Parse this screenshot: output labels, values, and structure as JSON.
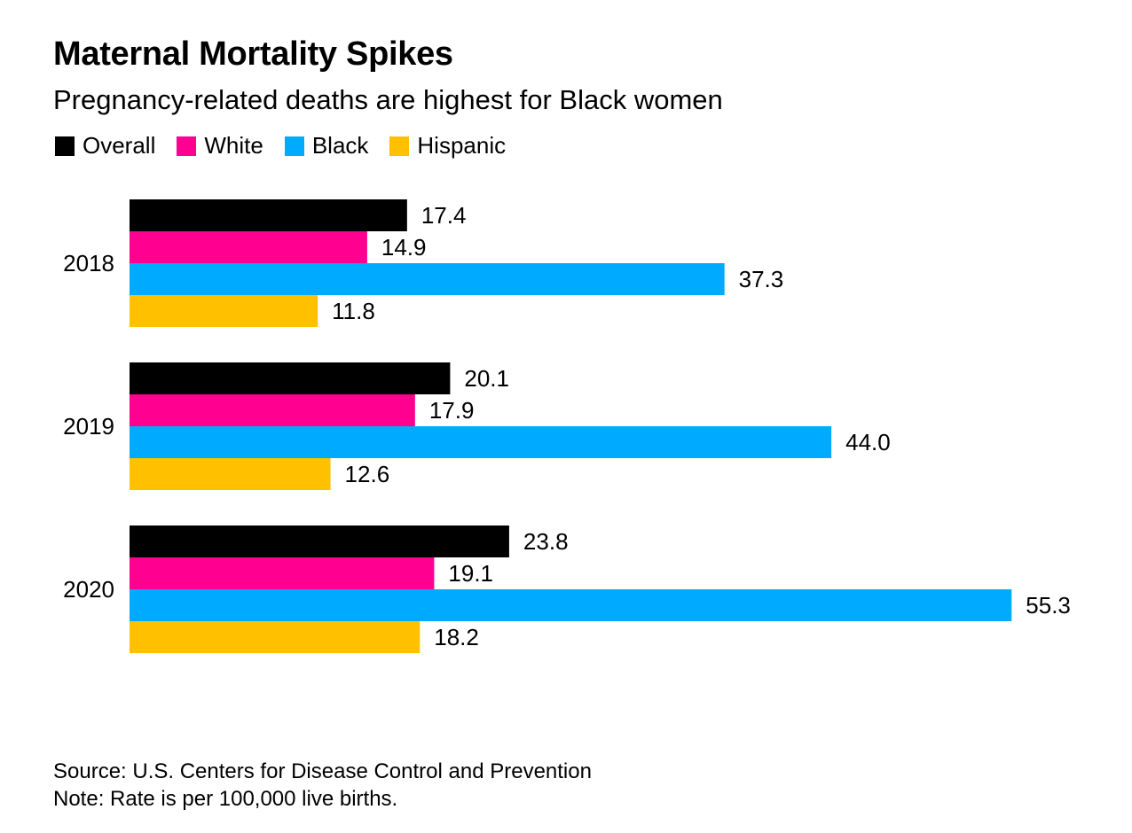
{
  "title": "Maternal Mortality Spikes",
  "subtitle": "Pregnancy-related deaths are highest for Black women",
  "source": "Source: U.S. Centers for Disease Control and Prevention",
  "note": "Note: Rate is per 100,000 live births.",
  "chart_data": {
    "type": "bar",
    "orientation": "horizontal",
    "title": "Maternal Mortality Spikes",
    "subtitle": "Pregnancy-related deaths are highest for Black women",
    "categories": [
      "2018",
      "2019",
      "2020"
    ],
    "series": [
      {
        "name": "Overall",
        "color": "#000000",
        "values": [
          17.4,
          20.1,
          23.8
        ],
        "labels": [
          "17.4",
          "20.1",
          "23.8"
        ]
      },
      {
        "name": "White",
        "color": "#ff0090",
        "values": [
          14.9,
          17.9,
          19.1
        ],
        "labels": [
          "14.9",
          "17.9",
          "19.1"
        ]
      },
      {
        "name": "Black",
        "color": "#00aaff",
        "values": [
          37.3,
          44.0,
          55.3
        ],
        "labels": [
          "37.3",
          "44.0",
          "55.3"
        ]
      },
      {
        "name": "Hispanic",
        "color": "#ffc000",
        "values": [
          11.8,
          12.6,
          18.2
        ],
        "labels": [
          "11.8",
          "12.6",
          "18.2"
        ]
      }
    ],
    "xlim": [
      0,
      55.3
    ],
    "grid": false,
    "legend": "top-left"
  }
}
